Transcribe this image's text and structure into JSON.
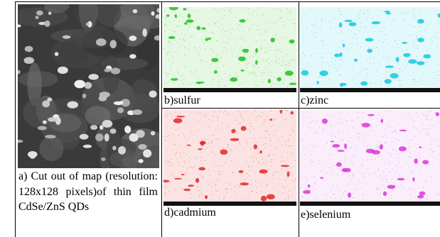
{
  "figure": {
    "panels": [
      {
        "caption": "a) Cut out of map (resolution: 128x128 pixels)of thin film CdSe/ZnS QDs"
      },
      {
        "caption": "b)sulfur"
      },
      {
        "caption": "c)zinc"
      },
      {
        "caption": "d)cadmium"
      },
      {
        "caption": "e)selenium"
      }
    ]
  }
}
